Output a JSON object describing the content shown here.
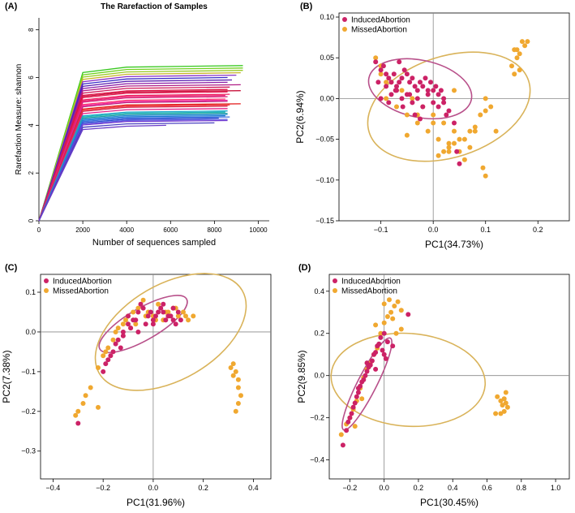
{
  "colors": {
    "induced": "#cc2266",
    "missed": "#f0a830",
    "missed_ellipse": "#d9b35a",
    "induced_ellipse": "#b8508a",
    "axis_line": "#888888"
  },
  "chart_data": [
    {
      "panel": "(A)",
      "type": "line",
      "title": "The Rarefaction of Samples",
      "xlabel": "Number of sequences sampled",
      "ylabel": "Rarefaction Measure: shannon",
      "xlim": [
        0,
        10500
      ],
      "ylim": [
        0,
        8.5
      ],
      "xticks": [
        0,
        2000,
        4000,
        6000,
        8000,
        10000
      ],
      "yticks": [
        0,
        2,
        4,
        6,
        8
      ],
      "curve_x": [
        0,
        2000,
        4000
      ],
      "curve_plateau_ratio": [
        0.955,
        0.99
      ],
      "series": [
        {
          "plateau": 6.5,
          "end": 9300,
          "color": "#39c820"
        },
        {
          "plateau": 6.4,
          "end": 9300,
          "color": "#6fd21e"
        },
        {
          "plateau": 6.3,
          "end": 9300,
          "color": "#9acb26"
        },
        {
          "plateau": 6.2,
          "end": 9200,
          "color": "#c8b42a"
        },
        {
          "plateau": 6.1,
          "end": 9000,
          "color": "#8a30c8"
        },
        {
          "plateau": 6.0,
          "end": 8600,
          "color": "#3a2cc8"
        },
        {
          "plateau": 5.9,
          "end": 8800,
          "color": "#5a20b0"
        },
        {
          "plateau": 5.8,
          "end": 8600,
          "color": "#8c1fa8"
        },
        {
          "plateau": 5.7,
          "end": 9200,
          "color": "#b01e86"
        },
        {
          "plateau": 5.6,
          "end": 8700,
          "color": "#d01a5a"
        },
        {
          "plateau": 5.5,
          "end": 8600,
          "color": "#e0164a"
        },
        {
          "plateau": 5.45,
          "end": 9200,
          "color": "#c8143c"
        },
        {
          "plateau": 5.4,
          "end": 8600,
          "color": "#e41a50"
        },
        {
          "plateau": 5.3,
          "end": 8700,
          "color": "#f02060"
        },
        {
          "plateau": 5.25,
          "end": 8500,
          "color": "#e6206e"
        },
        {
          "plateau": 5.2,
          "end": 8600,
          "color": "#d81e7a"
        },
        {
          "plateau": 5.1,
          "end": 8500,
          "color": "#ff3370"
        },
        {
          "plateau": 5.05,
          "end": 8600,
          "color": "#ee2299"
        },
        {
          "plateau": 5.0,
          "end": 8600,
          "color": "#c02080"
        },
        {
          "plateau": 4.9,
          "end": 9200,
          "color": "#e31a1a"
        },
        {
          "plateau": 4.85,
          "end": 8700,
          "color": "#f03c3c"
        },
        {
          "plateau": 4.8,
          "end": 8600,
          "color": "#d82850"
        },
        {
          "plateau": 4.7,
          "end": 8600,
          "color": "#e0208a"
        },
        {
          "plateau": 4.6,
          "end": 8600,
          "color": "#1aa8c8"
        },
        {
          "plateau": 4.55,
          "end": 8500,
          "color": "#20b4b4"
        },
        {
          "plateau": 4.5,
          "end": 8600,
          "color": "#22a0a0"
        },
        {
          "plateau": 4.45,
          "end": 8600,
          "color": "#2c8ed8"
        },
        {
          "plateau": 4.4,
          "end": 8500,
          "color": "#1e7ad0"
        },
        {
          "plateau": 4.35,
          "end": 8700,
          "color": "#3c6ee0"
        },
        {
          "plateau": 4.3,
          "end": 8200,
          "color": "#3050d0"
        },
        {
          "plateau": 4.25,
          "end": 8600,
          "color": "#5a5ae0"
        },
        {
          "plateau": 4.2,
          "end": 8600,
          "color": "#7038d0"
        },
        {
          "plateau": 4.1,
          "end": 8000,
          "color": "#4a40c0"
        },
        {
          "plateau": 4.0,
          "end": 5800,
          "color": "#6a3cc8"
        }
      ]
    },
    {
      "panel": "(B)",
      "type": "scatter",
      "xlabel": "PC1(34.73%)",
      "ylabel": "PC2(6.94%)",
      "xlim": [
        -0.18,
        0.26
      ],
      "ylim": [
        -0.15,
        0.105
      ],
      "xticks": [
        -0.1,
        0,
        0.1,
        0.2
      ],
      "xtick_labels": [
        "−0.1",
        "0.0",
        "0.1",
        "0.2"
      ],
      "yticks": [
        -0.15,
        -0.1,
        -0.05,
        0,
        0.05,
        0.1
      ],
      "ytick_labels": [
        "−0.15",
        "−0.10",
        "−0.05",
        "0.00",
        "0.05",
        "0.10"
      ],
      "legend": [
        "InducedAbortion",
        "MissedAbortion"
      ],
      "ellipses": [
        {
          "group": "missed",
          "cx": 0.03,
          "cy": -0.01,
          "rx": 0.16,
          "ry": 0.062,
          "angle": 18
        },
        {
          "group": "induced",
          "cx": -0.025,
          "cy": 0.012,
          "rx": 0.1,
          "ry": 0.035,
          "angle": -12
        }
      ],
      "series": [
        {
          "name": "InducedAbortion",
          "x": [
            -0.11,
            -0.1,
            -0.105,
            -0.095,
            -0.09,
            -0.085,
            -0.08,
            -0.075,
            -0.07,
            -0.065,
            -0.06,
            -0.055,
            -0.05,
            -0.045,
            -0.04,
            -0.035,
            -0.03,
            -0.025,
            -0.02,
            -0.015,
            -0.01,
            -0.005,
            0.0,
            0.005,
            0.01,
            0.015,
            0.02,
            -0.09,
            -0.08,
            -0.07,
            -0.06,
            -0.05,
            -0.04,
            -0.03,
            -0.02,
            -0.01,
            0.0,
            0.01,
            0.02,
            0.03,
            -0.1,
            -0.085,
            -0.072,
            -0.058,
            -0.045,
            -0.035,
            -0.025,
            0.025,
            0.04,
            -0.065,
            0.045,
            0.05
          ],
          "y": [
            0.045,
            0.035,
            0.02,
            0.04,
            0.03,
            0.025,
            0.02,
            0.03,
            0.015,
            0.02,
            0.025,
            0.035,
            0.03,
            0.02,
            0.025,
            0.015,
            0.01,
            0.02,
            0.015,
            0.025,
            0.01,
            0.02,
            0.01,
            0.015,
            0.005,
            0.01,
            0.0,
            0.015,
            0.005,
            0.01,
            0.0,
            0.005,
            -0.005,
            0.0,
            -0.01,
            0.005,
            -0.005,
            -0.01,
            -0.005,
            -0.015,
            0.0,
            -0.005,
            0.01,
            -0.01,
            0.005,
            -0.02,
            -0.025,
            -0.02,
            -0.03,
            0.045,
            -0.065,
            -0.08
          ]
        },
        {
          "name": "MissedAbortion",
          "x": [
            -0.11,
            -0.1,
            -0.09,
            -0.08,
            -0.07,
            -0.06,
            -0.05,
            -0.04,
            -0.03,
            -0.02,
            -0.01,
            0.0,
            0.01,
            0.02,
            0.03,
            0.04,
            0.05,
            0.06,
            0.07,
            0.08,
            0.09,
            0.1,
            0.11,
            0.12,
            -0.05,
            -0.03,
            0.0,
            0.02,
            0.04,
            0.06,
            0.08,
            0.1,
            0.03,
            0.05,
            0.07,
            0.095,
            0.1,
            0.15,
            0.155,
            0.16,
            0.165,
            0.16,
            0.17,
            0.175,
            0.18,
            0.155,
            0.165,
            0.04,
            -0.1,
            -0.09,
            0.01,
            0.03
          ],
          "y": [
            0.05,
            0.03,
            0.0,
            0.02,
            -0.01,
            0.01,
            -0.02,
            0.0,
            -0.03,
            -0.01,
            -0.04,
            -0.02,
            -0.05,
            -0.03,
            -0.06,
            -0.04,
            -0.065,
            -0.05,
            -0.06,
            -0.04,
            -0.02,
            0.0,
            -0.01,
            -0.04,
            -0.045,
            -0.02,
            -0.03,
            -0.065,
            -0.055,
            -0.075,
            -0.035,
            -0.015,
            -0.065,
            -0.05,
            -0.04,
            -0.085,
            -0.095,
            0.04,
            0.03,
            0.06,
            0.055,
            0.05,
            0.07,
            0.065,
            0.07,
            0.06,
            0.035,
            0.01,
            0.04,
            0.02,
            -0.07,
            -0.055
          ]
        }
      ]
    },
    {
      "panel": "(C)",
      "type": "scatter",
      "xlabel": "PC1(31.96%)",
      "ylabel": "PC2(7.38%)",
      "xlim": [
        -0.45,
        0.47
      ],
      "ylim": [
        -0.37,
        0.145
      ],
      "xticks": [
        -0.4,
        -0.2,
        0,
        0.2,
        0.4
      ],
      "xtick_labels": [
        "−0.4",
        "−0.2",
        "0.0",
        "0.2",
        "0.4"
      ],
      "yticks": [
        -0.3,
        -0.2,
        -0.1,
        0,
        0.1
      ],
      "ytick_labels": [
        "−0.3",
        "−0.2",
        "−0.1",
        "0.0",
        "0.1"
      ],
      "legend": [
        "InducedAbortion",
        "MissedAbortion"
      ],
      "ellipses": [
        {
          "group": "missed",
          "cx": 0.07,
          "cy": 0.0,
          "rx": 0.33,
          "ry": 0.12,
          "angle": 30
        },
        {
          "group": "induced",
          "cx": -0.04,
          "cy": 0.02,
          "rx": 0.2,
          "ry": 0.04,
          "angle": 30
        }
      ],
      "series": [
        {
          "name": "InducedAbortion",
          "x": [
            -0.2,
            -0.18,
            -0.16,
            -0.14,
            -0.12,
            -0.1,
            -0.08,
            -0.06,
            -0.04,
            -0.02,
            0.0,
            0.02,
            0.04,
            0.06,
            0.08,
            0.1,
            -0.15,
            -0.12,
            -0.09,
            -0.06,
            -0.03,
            0.01,
            0.05,
            0.09,
            -0.17,
            -0.13,
            -0.1,
            -0.07,
            -0.01,
            0.03,
            0.07,
            0.11,
            -0.19,
            -0.05,
            0.0,
            0.04,
            0.08,
            -0.3
          ],
          "y": [
            -0.1,
            -0.07,
            -0.05,
            -0.02,
            0.0,
            0.02,
            0.03,
            0.05,
            0.06,
            0.04,
            0.03,
            0.05,
            0.07,
            0.04,
            0.06,
            0.05,
            -0.03,
            -0.01,
            0.01,
            0.0,
            0.02,
            0.04,
            0.03,
            0.02,
            -0.06,
            -0.04,
            0.04,
            0.03,
            0.05,
            0.06,
            0.04,
            0.03,
            -0.08,
            0.07,
            0.02,
            0.05,
            0.03,
            -0.23
          ]
        },
        {
          "name": "MissedAbortion",
          "x": [
            -0.22,
            -0.2,
            -0.18,
            -0.16,
            -0.14,
            -0.12,
            -0.1,
            -0.08,
            -0.06,
            -0.04,
            -0.02,
            0.0,
            0.02,
            0.04,
            0.06,
            0.08,
            0.1,
            0.12,
            0.14,
            0.16,
            -0.15,
            -0.11,
            -0.07,
            -0.03,
            0.01,
            0.05,
            0.09,
            0.13,
            -0.25,
            -0.27,
            -0.3,
            -0.28,
            -0.31,
            -0.22,
            0.32,
            0.33,
            0.34,
            0.34,
            0.35,
            0.34,
            0.33,
            0.32,
            0.31,
            -0.19,
            -0.09
          ],
          "y": [
            -0.09,
            -0.06,
            -0.04,
            -0.02,
            0.01,
            0.02,
            0.04,
            0.05,
            0.06,
            0.08,
            0.05,
            0.04,
            0.07,
            0.03,
            0.05,
            0.06,
            0.04,
            0.05,
            0.03,
            0.04,
            0.0,
            0.03,
            0.02,
            0.04,
            0.03,
            0.05,
            0.06,
            0.04,
            -0.14,
            -0.16,
            -0.2,
            -0.18,
            -0.21,
            -0.19,
            -0.08,
            -0.1,
            -0.12,
            -0.14,
            -0.16,
            -0.18,
            -0.2,
            -0.11,
            -0.09,
            -0.05,
            0.01
          ]
        }
      ]
    },
    {
      "panel": "(D)",
      "type": "scatter",
      "xlabel": "PC1(30.45%)",
      "ylabel": "PC2(9.85%)",
      "xlim": [
        -0.32,
        1.08
      ],
      "ylim": [
        -0.49,
        0.48
      ],
      "xticks": [
        -0.2,
        0,
        0.2,
        0.4,
        0.6,
        0.8,
        1.0
      ],
      "xtick_labels": [
        "−0.2",
        "0.0",
        "0.2",
        "0.4",
        "0.6",
        "0.8",
        "1.0"
      ],
      "yticks": [
        -0.4,
        -0.2,
        0,
        0.2,
        0.4
      ],
      "ytick_labels": [
        "−0.4",
        "−0.2",
        "0.0",
        "0.2",
        "0.4"
      ],
      "legend": [
        "InducedAbortion",
        "MissedAbortion"
      ],
      "ellipses": [
        {
          "group": "missed",
          "cx": 0.14,
          "cy": -0.02,
          "rx": 0.45,
          "ry": 0.22,
          "angle": -4
        },
        {
          "group": "induced",
          "cx": -0.1,
          "cy": -0.04,
          "rx": 0.3,
          "ry": 0.045,
          "angle": 63
        }
      ],
      "series": [
        {
          "name": "InducedAbortion",
          "x": [
            -0.22,
            -0.2,
            -0.18,
            -0.16,
            -0.14,
            -0.12,
            -0.1,
            -0.08,
            -0.06,
            -0.04,
            -0.02,
            0.0,
            0.02,
            -0.19,
            -0.17,
            -0.15,
            -0.13,
            -0.11,
            -0.09,
            -0.07,
            -0.05,
            -0.03,
            -0.01,
            0.01,
            -0.21,
            -0.15,
            -0.1,
            -0.05,
            0.0,
            0.05,
            0.14,
            -0.24
          ],
          "y": [
            -0.26,
            -0.2,
            -0.15,
            -0.1,
            -0.05,
            -0.02,
            0.02,
            0.05,
            0.1,
            0.14,
            0.18,
            0.2,
            0.16,
            -0.18,
            -0.13,
            -0.08,
            -0.03,
            0.0,
            0.04,
            0.07,
            0.11,
            0.15,
            0.12,
            0.08,
            -0.22,
            -0.06,
            0.06,
            0.03,
            0.1,
            0.14,
            0.29,
            -0.33
          ]
        },
        {
          "name": "MissedAbortion",
          "x": [
            -0.25,
            -0.22,
            -0.2,
            -0.18,
            -0.16,
            -0.14,
            -0.12,
            -0.1,
            -0.08,
            -0.06,
            -0.04,
            -0.02,
            0.0,
            0.02,
            0.04,
            0.06,
            0.08,
            0.1,
            -0.05,
            0.0,
            0.05,
            0.1,
            0.03,
            0.07,
            0.66,
            0.68,
            0.69,
            0.7,
            0.71,
            0.72,
            0.7,
            0.68,
            0.65,
            0.71,
            -0.17,
            -0.13
          ],
          "y": [
            -0.28,
            -0.23,
            -0.2,
            -0.16,
            -0.12,
            -0.06,
            -0.01,
            0.03,
            0.06,
            0.1,
            0.13,
            0.2,
            0.25,
            0.28,
            0.3,
            0.33,
            0.35,
            0.31,
            0.24,
            0.34,
            0.27,
            0.22,
            0.36,
            0.2,
            -0.1,
            -0.12,
            -0.14,
            -0.11,
            -0.13,
            -0.15,
            -0.17,
            -0.18,
            -0.18,
            -0.08,
            -0.24,
            -0.11
          ]
        }
      ]
    }
  ]
}
